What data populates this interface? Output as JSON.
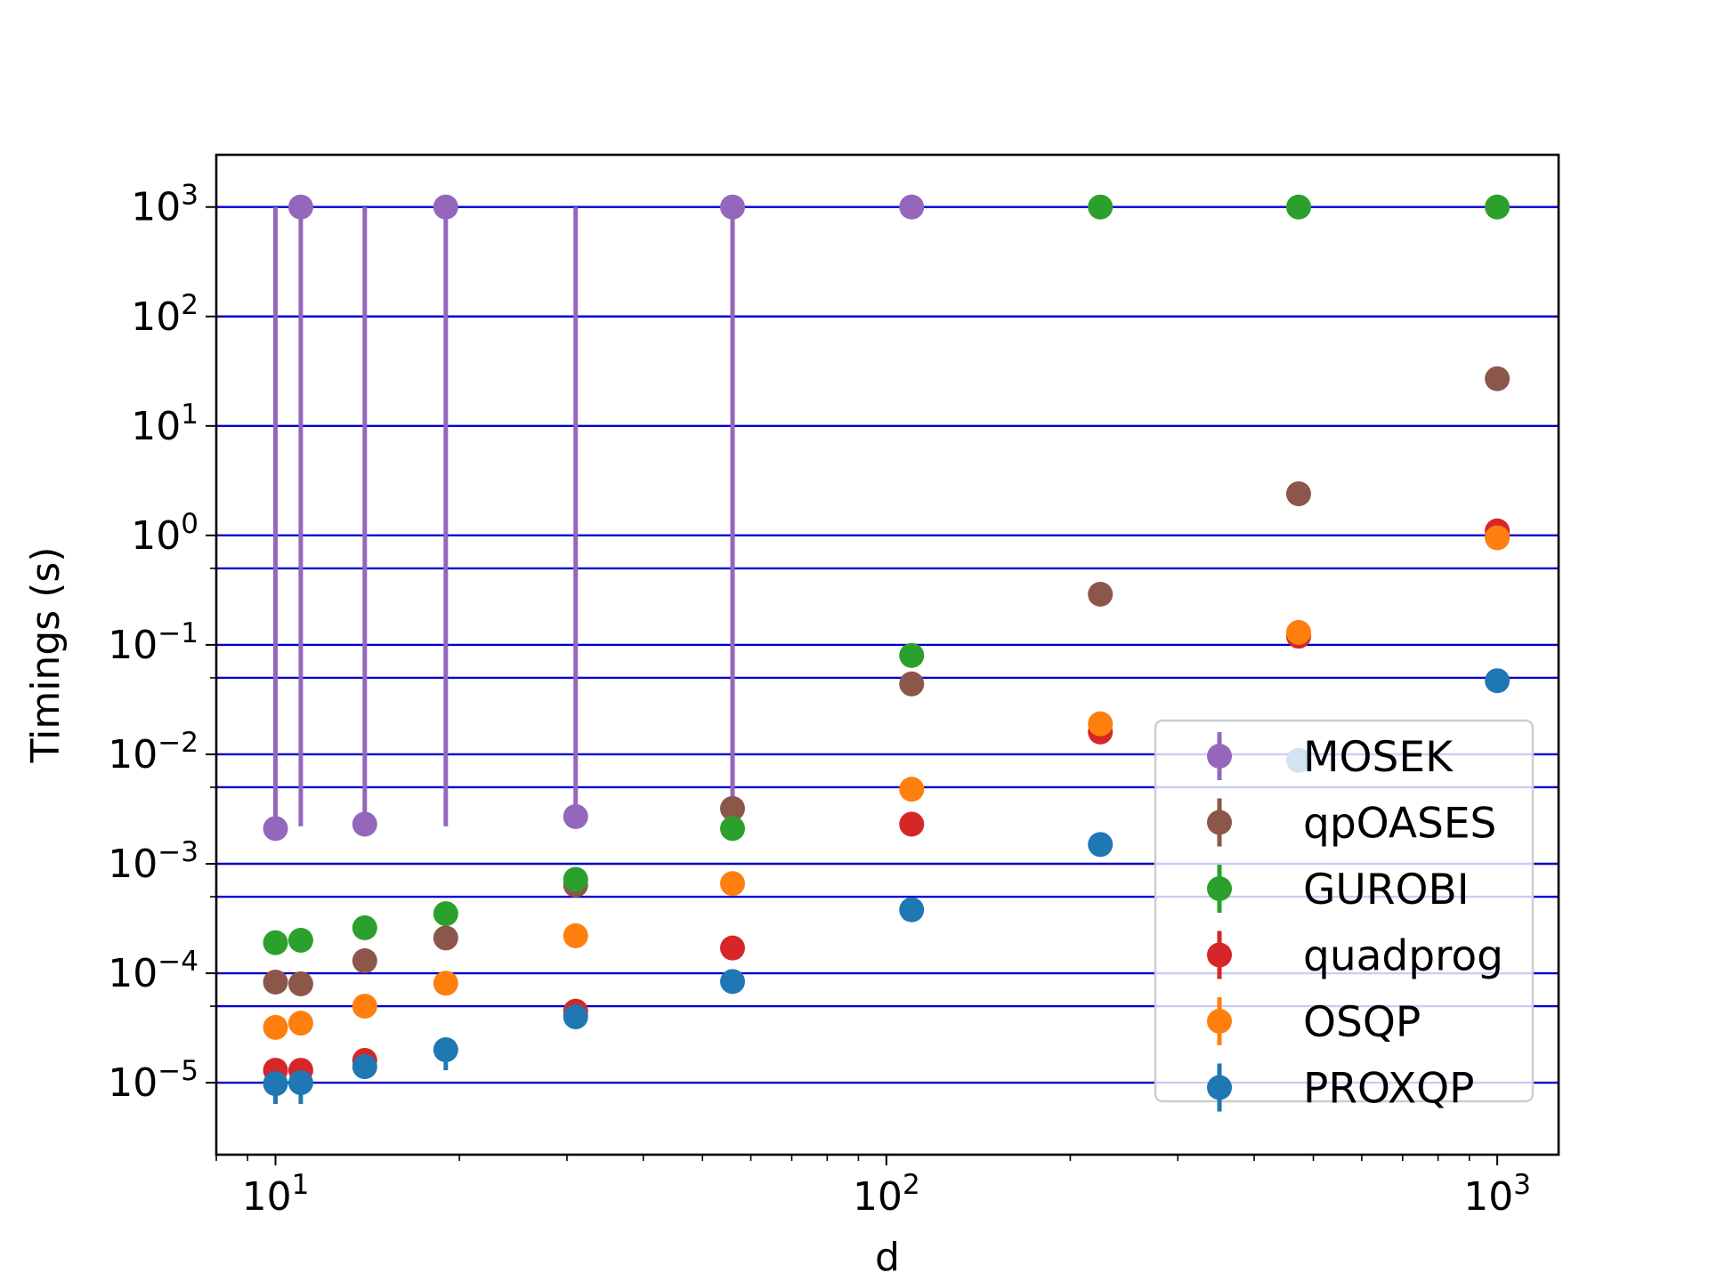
{
  "chart_data": {
    "type": "scatter",
    "title": "",
    "xlabel": "d",
    "ylabel": "Timings (s)",
    "xscale": "log",
    "yscale": "log",
    "xlim": [
      8,
      1260
    ],
    "ylim": [
      2.2e-06,
      3000
    ],
    "xticks": [
      {
        "value": 10,
        "base": "10",
        "exp": "1"
      },
      {
        "value": 100,
        "base": "10",
        "exp": "2"
      },
      {
        "value": 1000,
        "base": "10",
        "exp": "3"
      }
    ],
    "yticks": [
      {
        "value": 1e-05,
        "base": "10",
        "exp": "−5"
      },
      {
        "value": 0.0001,
        "base": "10",
        "exp": "−4"
      },
      {
        "value": 0.001,
        "base": "10",
        "exp": "−3"
      },
      {
        "value": 0.01,
        "base": "10",
        "exp": "−2"
      },
      {
        "value": 0.1,
        "base": "10",
        "exp": "−1"
      },
      {
        "value": 1,
        "base": "10",
        "exp": "0"
      },
      {
        "value": 10,
        "base": "10",
        "exp": "1"
      },
      {
        "value": 100,
        "base": "10",
        "exp": "2"
      },
      {
        "value": 1000,
        "base": "10",
        "exp": "3"
      }
    ],
    "hlines": [
      1e-05,
      5e-05,
      0.0001,
      0.0005,
      0.001,
      0.005,
      0.01,
      0.05,
      0.1,
      0.5,
      1,
      10,
      100,
      1000
    ],
    "hline_color": "#0000cc",
    "legend_position": "lower-right",
    "series": [
      {
        "name": "MOSEK",
        "color": "#9467bd",
        "points": [
          {
            "x": 10,
            "y": 0.0021,
            "err_low": 0.0021,
            "err_high": 1000
          },
          {
            "x": 11,
            "y": 1000,
            "err_low": 0.0022,
            "err_high": 1000
          },
          {
            "x": 14,
            "y": 0.0023,
            "err_low": 0.0023,
            "err_high": 1000
          },
          {
            "x": 19,
            "y": 1000,
            "err_low": 0.0022,
            "err_high": 1000
          },
          {
            "x": 31,
            "y": 0.0027,
            "err_low": 0.0027,
            "err_high": 1000
          },
          {
            "x": 56,
            "y": 1000,
            "err_low": 0.0028,
            "err_high": 1000
          },
          {
            "x": 110,
            "y": 1000,
            "err_low": 1000,
            "err_high": 1000
          }
        ]
      },
      {
        "name": "qpOASES",
        "color": "#8c564b",
        "points": [
          {
            "x": 10,
            "y": 8.3e-05
          },
          {
            "x": 11,
            "y": 8e-05
          },
          {
            "x": 14,
            "y": 0.00013
          },
          {
            "x": 19,
            "y": 0.00021
          },
          {
            "x": 31,
            "y": 0.00064
          },
          {
            "x": 56,
            "y": 0.0032
          },
          {
            "x": 110,
            "y": 0.044
          },
          {
            "x": 224,
            "y": 0.29
          },
          {
            "x": 473,
            "y": 2.4
          },
          {
            "x": 1000,
            "y": 27
          }
        ]
      },
      {
        "name": "GUROBI",
        "color": "#2ca02c",
        "points": [
          {
            "x": 10,
            "y": 0.00019
          },
          {
            "x": 11,
            "y": 0.0002
          },
          {
            "x": 14,
            "y": 0.00026
          },
          {
            "x": 19,
            "y": 0.00035
          },
          {
            "x": 31,
            "y": 0.00072
          },
          {
            "x": 56,
            "y": 0.0021
          },
          {
            "x": 110,
            "y": 0.08
          },
          {
            "x": 224,
            "y": 1000
          },
          {
            "x": 473,
            "y": 1000
          },
          {
            "x": 1000,
            "y": 1000
          }
        ]
      },
      {
        "name": "quadprog",
        "color": "#d62728",
        "points": [
          {
            "x": 10,
            "y": 1.3e-05
          },
          {
            "x": 11,
            "y": 1.3e-05
          },
          {
            "x": 14,
            "y": 1.6e-05
          },
          {
            "x": 31,
            "y": 4.5e-05
          },
          {
            "x": 56,
            "y": 0.00017
          },
          {
            "x": 110,
            "y": 0.0023
          },
          {
            "x": 224,
            "y": 0.016
          },
          {
            "x": 473,
            "y": 0.12
          },
          {
            "x": 1000,
            "y": 1.1
          }
        ]
      },
      {
        "name": "OSQP",
        "color": "#ff7f0e",
        "points": [
          {
            "x": 10,
            "y": 3.2e-05
          },
          {
            "x": 11,
            "y": 3.5e-05
          },
          {
            "x": 14,
            "y": 5e-05
          },
          {
            "x": 19,
            "y": 8.1e-05
          },
          {
            "x": 31,
            "y": 0.00022
          },
          {
            "x": 56,
            "y": 0.00066
          },
          {
            "x": 110,
            "y": 0.0048
          },
          {
            "x": 224,
            "y": 0.019
          },
          {
            "x": 473,
            "y": 0.13
          },
          {
            "x": 1000,
            "y": 0.95
          }
        ]
      },
      {
        "name": "PROXQP",
        "color": "#1f77b4",
        "points": [
          {
            "x": 10,
            "y": 9.8e-06,
            "err_low": 6.4e-06,
            "err_high": 9.8e-06
          },
          {
            "x": 11,
            "y": 1e-05,
            "err_low": 6.4e-06,
            "err_high": 1e-05
          },
          {
            "x": 14,
            "y": 1.4e-05
          },
          {
            "x": 19,
            "y": 2e-05,
            "err_low": 1.3e-05,
            "err_high": 2e-05
          },
          {
            "x": 31,
            "y": 4e-05
          },
          {
            "x": 56,
            "y": 8.4e-05
          },
          {
            "x": 110,
            "y": 0.00038
          },
          {
            "x": 224,
            "y": 0.0015
          },
          {
            "x": 473,
            "y": 0.0088
          },
          {
            "x": 1000,
            "y": 0.047
          }
        ]
      }
    ]
  }
}
